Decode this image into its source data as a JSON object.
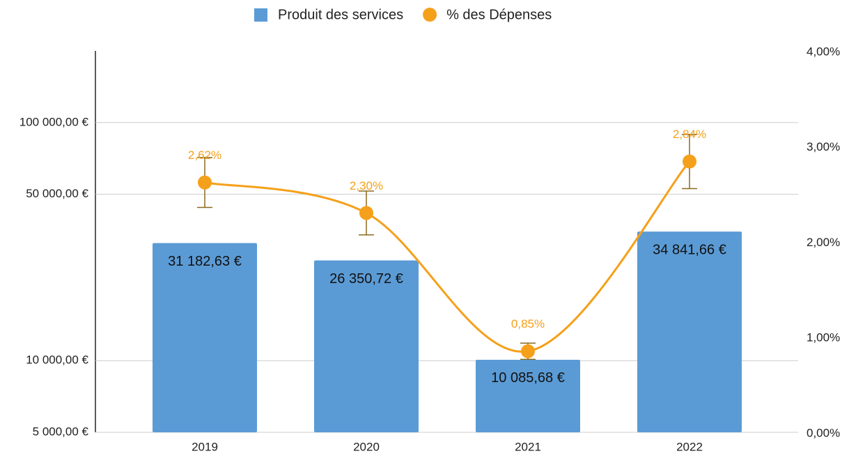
{
  "chart_data": {
    "type": "bar",
    "categories": [
      "2019",
      "2020",
      "2021",
      "2022"
    ],
    "series": [
      {
        "name": "Produit des services",
        "color": "#5b9bd5",
        "type": "bar",
        "values": [
          31182.63,
          26350.72,
          10085.68,
          34841.66
        ],
        "value_labels": [
          "31 182,63 €",
          "26 350,72 €",
          "10 085,68 €",
          "34 841,66 €"
        ]
      },
      {
        "name": "% des Dépenses",
        "color": "#f5a01a",
        "type": "line",
        "axis": "y2",
        "values": [
          2.62,
          2.3,
          0.85,
          2.84
        ],
        "value_labels": [
          "2,62%",
          "2,30%",
          "0,85%",
          "2,84%"
        ],
        "errors": [
          0.262,
          0.23,
          0.085,
          0.284
        ],
        "error_color": "#8b6a1e"
      }
    ],
    "ylog": true,
    "ylim": [
      5000,
      200000
    ],
    "yticks": [
      {
        "value": 5000,
        "label": "5 000,00 €"
      },
      {
        "value": 10000,
        "label": "10 000,00 €"
      },
      {
        "value": 50000,
        "label": "50 000,00 €"
      },
      {
        "value": 100000,
        "label": "100 000,00 €"
      }
    ],
    "y2lim": [
      0,
      4
    ],
    "y2ticks": [
      {
        "value": 0,
        "label": "0,00%"
      },
      {
        "value": 1,
        "label": "1,00%"
      },
      {
        "value": 2,
        "label": "2,00%"
      },
      {
        "value": 3,
        "label": "3,00%"
      },
      {
        "value": 4,
        "label": "4,00%"
      }
    ],
    "grid": true,
    "legend": "top"
  }
}
